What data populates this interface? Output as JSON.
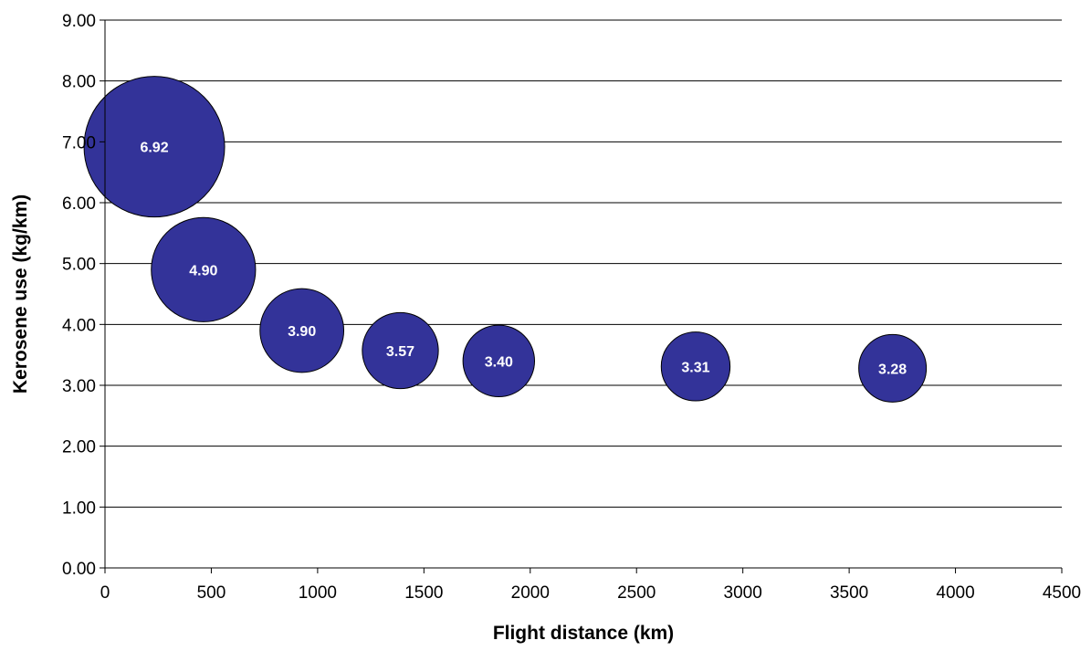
{
  "chart_data": {
    "type": "scatter",
    "title": "",
    "xlabel": "Flight distance (km)",
    "ylabel": "Kerosene use (kg/km)",
    "xlim": [
      0,
      4500
    ],
    "ylim": [
      0,
      9
    ],
    "x_ticks": [
      "0",
      "500",
      "1000",
      "1500",
      "2000",
      "2500",
      "3000",
      "3500",
      "4000",
      "4500"
    ],
    "y_ticks": [
      "0.00",
      "1.00",
      "2.00",
      "3.00",
      "4.00",
      "5.00",
      "6.00",
      "7.00",
      "8.00",
      "9.00"
    ],
    "grid": "horizontal",
    "legend": "none",
    "bubble_color": "#333399",
    "points": [
      {
        "x": 232,
        "y": 6.92,
        "label": "6.92"
      },
      {
        "x": 463,
        "y": 4.9,
        "label": "4.90"
      },
      {
        "x": 926,
        "y": 3.9,
        "label": "3.90"
      },
      {
        "x": 1389,
        "y": 3.57,
        "label": "3.57"
      },
      {
        "x": 1852,
        "y": 3.4,
        "label": "3.40"
      },
      {
        "x": 2778,
        "y": 3.31,
        "label": "3.31"
      },
      {
        "x": 3704,
        "y": 3.28,
        "label": "3.28"
      }
    ]
  }
}
